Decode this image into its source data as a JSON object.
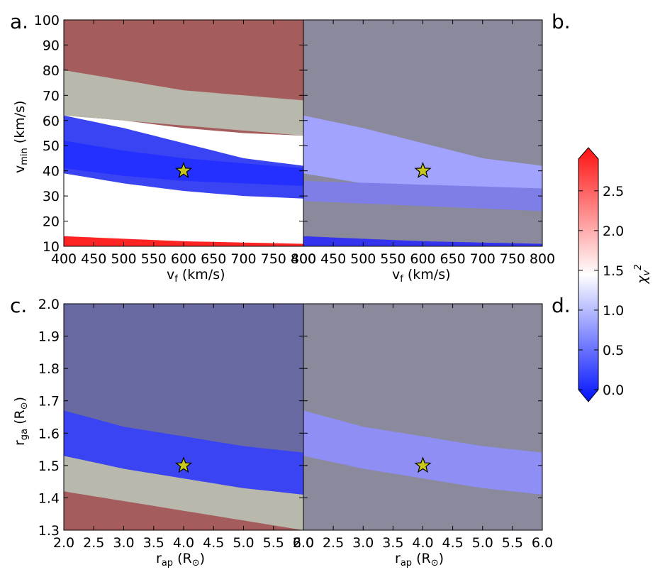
{
  "figure": {
    "panel_labels": [
      "a.",
      "b.",
      "c.",
      "d."
    ],
    "colorbar": {
      "label_main": "χ",
      "label_sub": "v",
      "label_sup": "2",
      "ticks": [
        0.0,
        0.5,
        1.0,
        1.5,
        2.0,
        2.5
      ],
      "tick_labels": [
        "0.0",
        "0.5",
        "1.0",
        "1.5",
        "2.0",
        "2.5"
      ],
      "range": [
        0.0,
        2.9
      ],
      "low_color": "#0011ff",
      "mid_color": "#ffffff",
      "high_color": "#ff1111"
    },
    "marker_color": "#c8c81c"
  },
  "chart_data": [
    {
      "panel": "a",
      "type": "heatmap",
      "subtype": "filled-contour",
      "xlabel_main": "v",
      "xlabel_sub": "f",
      "xlabel_unit": "(km/s)",
      "ylabel_main": "v",
      "ylabel_sub": "min",
      "ylabel_unit": "(km/s)",
      "xlim": [
        400,
        800
      ],
      "ylim": [
        10,
        100
      ],
      "xticks": [
        400,
        450,
        500,
        550,
        600,
        650,
        700,
        750,
        800
      ],
      "xtick_labels": [
        "400",
        "450",
        "500",
        "550",
        "600",
        "650",
        "700",
        "750",
        "800"
      ],
      "yticks": [
        10,
        20,
        30,
        40,
        50,
        60,
        70,
        80,
        90,
        100
      ],
      "ytick_labels": [
        "10",
        "20",
        "30",
        "40",
        "50",
        "60",
        "70",
        "80",
        "90",
        "100"
      ],
      "best_fit": {
        "x": 600,
        "y": 40
      },
      "regions": [
        {
          "desc": "high chi2",
          "chi2": 2.6,
          "color": "#a55c5c",
          "lower": [
            [
              400,
              62
            ],
            [
              500,
              60
            ],
            [
              600,
              57
            ],
            [
              700,
              55
            ],
            [
              800,
              54
            ]
          ],
          "upper": [
            [
              400,
              100
            ],
            [
              800,
              100
            ]
          ]
        },
        {
          "desc": "transition",
          "chi2": 1.5,
          "color": "#b8b8ac",
          "lower": [
            [
              400,
              62
            ],
            [
              800,
              54
            ]
          ],
          "upper": [
            [
              400,
              80
            ],
            [
              500,
              76
            ],
            [
              600,
              72
            ],
            [
              700,
              70
            ],
            [
              800,
              68
            ]
          ]
        },
        {
          "desc": "good fit",
          "chi2": 0.2,
          "color": "#3a44f2",
          "lower": [
            [
              400,
              39
            ],
            [
              500,
              35
            ],
            [
              600,
              32
            ],
            [
              700,
              30
            ],
            [
              800,
              29
            ]
          ],
          "upper": [
            [
              400,
              62
            ],
            [
              500,
              57
            ],
            [
              600,
              51
            ],
            [
              700,
              45
            ],
            [
              800,
              42
            ]
          ]
        },
        {
          "desc": "best fit core",
          "chi2": 0.05,
          "color": "#2430ff",
          "lower": [
            [
              400,
              41
            ],
            [
              500,
              38
            ],
            [
              600,
              36
            ],
            [
              700,
              35
            ],
            [
              800,
              34
            ]
          ],
          "upper": [
            [
              400,
              52
            ],
            [
              500,
              48
            ],
            [
              600,
              45
            ],
            [
              700,
              43
            ],
            [
              800,
              41
            ]
          ]
        },
        {
          "desc": "bottom high",
          "chi2": 2.9,
          "color": "#ff2424",
          "lower": [
            [
              400,
              10
            ],
            [
              800,
              10
            ]
          ],
          "upper": [
            [
              400,
              14
            ],
            [
              600,
              12
            ],
            [
              800,
              11
            ]
          ]
        }
      ]
    },
    {
      "panel": "b",
      "type": "heatmap",
      "subtype": "filled-contour",
      "xlabel_main": "v",
      "xlabel_sub": "f",
      "xlabel_unit": "(km/s)",
      "xlim": [
        400,
        800
      ],
      "ylim": [
        10,
        100
      ],
      "xticks": [
        400,
        450,
        500,
        550,
        600,
        650,
        700,
        750,
        800
      ],
      "xtick_labels": [
        "400",
        "450",
        "500",
        "550",
        "600",
        "650",
        "700",
        "750",
        "800"
      ],
      "best_fit": {
        "x": 600,
        "y": 40
      },
      "regions": [
        {
          "desc": "background",
          "chi2": 1.6,
          "color": "#8a8a9c",
          "lower": [
            [
              400,
              10
            ],
            [
              800,
              10
            ]
          ],
          "upper": [
            [
              400,
              100
            ],
            [
              800,
              100
            ]
          ]
        },
        {
          "desc": "uncertainty band",
          "chi2": 1.1,
          "color": "#a2a2ff",
          "lower": [
            [
              400,
              39
            ],
            [
              500,
              35
            ],
            [
              600,
              32
            ],
            [
              700,
              30
            ],
            [
              800,
              29
            ]
          ],
          "upper": [
            [
              400,
              62
            ],
            [
              500,
              57
            ],
            [
              600,
              51
            ],
            [
              700,
              45
            ],
            [
              800,
              42
            ]
          ]
        },
        {
          "desc": "lower band",
          "chi2": 0.9,
          "color": "#7e7ee6",
          "lower": [
            [
              400,
              28
            ],
            [
              800,
              24
            ]
          ],
          "upper": [
            [
              400,
              36
            ],
            [
              800,
              33
            ]
          ]
        },
        {
          "desc": "bottom low",
          "chi2": 0.2,
          "color": "#3434ee",
          "lower": [
            [
              400,
              10
            ],
            [
              800,
              10
            ]
          ],
          "upper": [
            [
              400,
              14
            ],
            [
              600,
              12
            ],
            [
              800,
              11
            ]
          ]
        }
      ]
    },
    {
      "panel": "c",
      "type": "heatmap",
      "subtype": "filled-contour",
      "xlabel_main": "r",
      "xlabel_sub": "ap",
      "xlabel_unit_open": "(R",
      "xlabel_unit_close": ")",
      "ylabel_main": "r",
      "ylabel_sub": "ga",
      "ylabel_unit_open": "(R",
      "ylabel_unit_close": ")",
      "xlim": [
        2.0,
        6.0
      ],
      "ylim": [
        1.3,
        2.0
      ],
      "xticks": [
        2.0,
        2.5,
        3.0,
        3.5,
        4.0,
        4.5,
        5.0,
        5.5,
        6.0
      ],
      "xtick_labels": [
        "2.0",
        "2.5",
        "3.0",
        "3.5",
        "4.0",
        "4.5",
        "5.0",
        "5.5",
        "6.0"
      ],
      "yticks": [
        1.3,
        1.4,
        1.5,
        1.6,
        1.7,
        1.8,
        1.9,
        2.0
      ],
      "ytick_labels": [
        "1.3",
        "1.4",
        "1.5",
        "1.6",
        "1.7",
        "1.8",
        "1.9",
        "2.0"
      ],
      "best_fit": {
        "x": 4.0,
        "y": 1.5
      },
      "regions": [
        {
          "desc": "background",
          "chi2": 1.2,
          "color": "#6a6aa2",
          "lower": [
            [
              2.0,
              1.3
            ],
            [
              6.0,
              1.3
            ]
          ],
          "upper": [
            [
              2.0,
              2.0
            ],
            [
              6.0,
              2.0
            ]
          ]
        },
        {
          "desc": "high chi2",
          "chi2": 2.6,
          "color": "#a55c5c",
          "lower": [
            [
              2.0,
              1.3
            ],
            [
              6.0,
              1.3
            ]
          ],
          "upper": [
            [
              2.0,
              1.45
            ],
            [
              3.0,
              1.42
            ],
            [
              4.0,
              1.39
            ],
            [
              5.0,
              1.36
            ],
            [
              6.0,
              1.32
            ]
          ]
        },
        {
          "desc": "transition",
          "chi2": 1.5,
          "color": "#b8b8ac",
          "lower": [
            [
              2.0,
              1.42
            ],
            [
              3.0,
              1.39
            ],
            [
              4.0,
              1.36
            ],
            [
              5.0,
              1.33
            ],
            [
              6.0,
              1.3
            ]
          ],
          "upper": [
            [
              2.0,
              1.53
            ],
            [
              3.0,
              1.49
            ],
            [
              4.0,
              1.46
            ],
            [
              5.0,
              1.43
            ],
            [
              6.0,
              1.41
            ]
          ]
        },
        {
          "desc": "good fit",
          "chi2": 0.2,
          "color": "#3a44f2",
          "lower": [
            [
              2.0,
              1.53
            ],
            [
              3.0,
              1.49
            ],
            [
              4.0,
              1.46
            ],
            [
              5.0,
              1.43
            ],
            [
              6.0,
              1.41
            ]
          ],
          "upper": [
            [
              2.0,
              1.67
            ],
            [
              3.0,
              1.62
            ],
            [
              4.0,
              1.59
            ],
            [
              5.0,
              1.56
            ],
            [
              6.0,
              1.54
            ]
          ]
        }
      ]
    },
    {
      "panel": "d",
      "type": "heatmap",
      "subtype": "filled-contour",
      "xlabel_main": "r",
      "xlabel_sub": "ap",
      "xlabel_unit_open": "(R",
      "xlabel_unit_close": ")",
      "xlim": [
        2.0,
        6.0
      ],
      "ylim": [
        1.3,
        2.0
      ],
      "xticks": [
        2.0,
        2.5,
        3.0,
        3.5,
        4.0,
        4.5,
        5.0,
        5.5,
        6.0
      ],
      "xtick_labels": [
        "2.0",
        "2.5",
        "3.0",
        "3.5",
        "4.0",
        "4.5",
        "5.0",
        "5.5",
        "6.0"
      ],
      "best_fit": {
        "x": 4.0,
        "y": 1.5
      },
      "regions": [
        {
          "desc": "background",
          "chi2": 1.6,
          "color": "#8a8a9c",
          "lower": [
            [
              2.0,
              1.3
            ],
            [
              6.0,
              1.3
            ]
          ],
          "upper": [
            [
              2.0,
              2.0
            ],
            [
              6.0,
              2.0
            ]
          ]
        },
        {
          "desc": "uncertainty band",
          "chi2": 1.0,
          "color": "#8e8ef4",
          "lower": [
            [
              2.0,
              1.53
            ],
            [
              3.0,
              1.49
            ],
            [
              4.0,
              1.46
            ],
            [
              5.0,
              1.43
            ],
            [
              6.0,
              1.41
            ]
          ],
          "upper": [
            [
              2.0,
              1.67
            ],
            [
              3.0,
              1.62
            ],
            [
              4.0,
              1.59
            ],
            [
              5.0,
              1.56
            ],
            [
              6.0,
              1.54
            ]
          ]
        }
      ]
    }
  ]
}
